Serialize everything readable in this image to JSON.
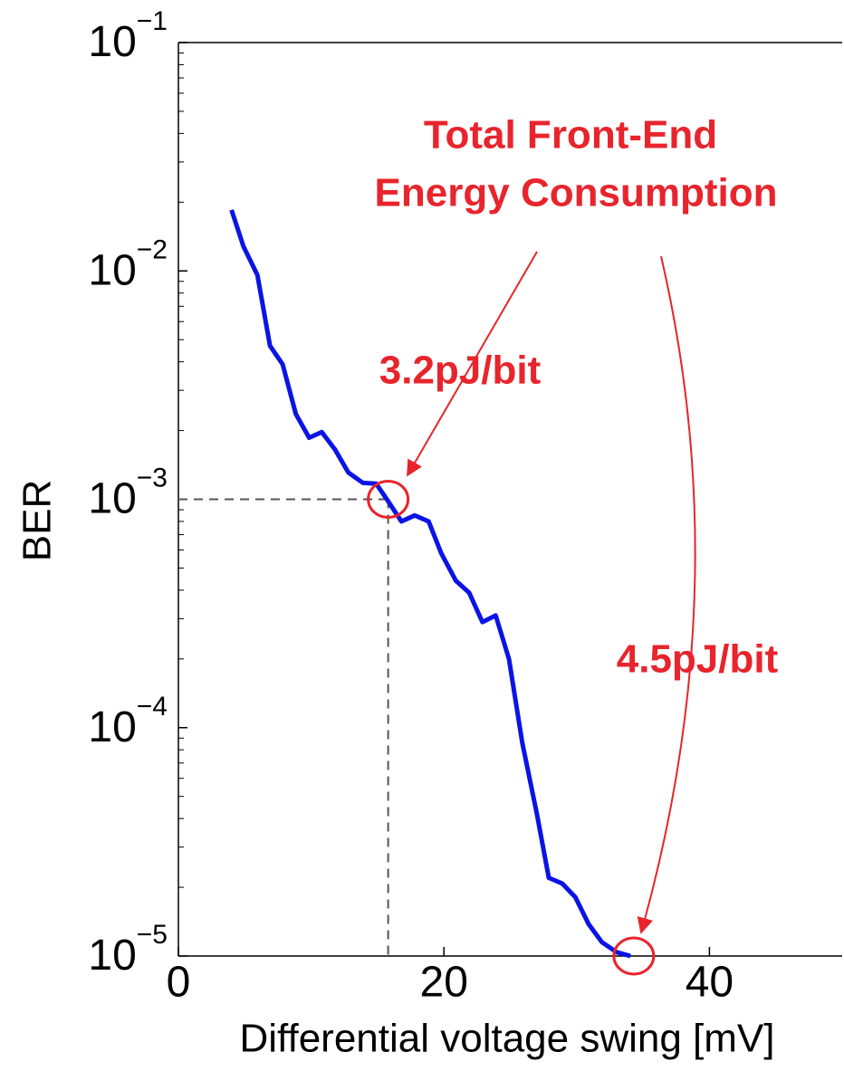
{
  "chart_data": {
    "type": "line",
    "xlabel": "Differential voltage swing [mV]",
    "ylabel": "BER",
    "log_y": true,
    "xlim": [
      0,
      50
    ],
    "ylim": [
      1e-05,
      0.1
    ],
    "xticks": [
      0,
      20,
      40
    ],
    "yticks": [
      {
        "value": 0.1,
        "label": "10",
        "sup": "−1"
      },
      {
        "value": 0.01,
        "label": "10",
        "sup": "−2"
      },
      {
        "value": 0.001,
        "label": "10",
        "sup": "−3"
      },
      {
        "value": 0.0001,
        "label": "10",
        "sup": "−4"
      },
      {
        "value": 1e-05,
        "label": "10",
        "sup": "−5"
      }
    ],
    "series": [
      {
        "color": "#0a14e6",
        "x": [
          4.0,
          4.9,
          5.95,
          6.9,
          7.85,
          8.85,
          9.85,
          10.8,
          11.8,
          12.8,
          13.9,
          14.9,
          15.8,
          16.8,
          17.8,
          18.85,
          19.8,
          20.9,
          21.9,
          22.9,
          23.9,
          24.9,
          25.9,
          27.0,
          27.9,
          28.9,
          29.9,
          30.9,
          31.9,
          33.0,
          34.05
        ],
        "values": [
          0.0185,
          0.0128,
          0.0096,
          0.0047,
          0.0039,
          0.00236,
          0.00186,
          0.00197,
          0.00165,
          0.00131,
          0.00118,
          0.00117,
          0.00098,
          0.0008,
          0.00085,
          0.0008,
          0.00058,
          0.00044,
          0.00039,
          0.00029,
          0.00031,
          0.0002,
          8.6e-05,
          4.2e-05,
          2.2e-05,
          2.08e-05,
          1.81e-05,
          1.38e-05,
          1.15e-05,
          1.04e-05,
          1e-05
        ]
      }
    ],
    "reference_lines": {
      "x": 15.8,
      "y": 0.001
    },
    "highlights": [
      {
        "x": 15.8,
        "y": 0.001
      },
      {
        "x": 34.3,
        "y": 1e-05
      }
    ],
    "annotations": [
      "Total Front-End",
      "Energy Consumption",
      "3.2pJ/bit",
      "4.5pJ/bit"
    ]
  }
}
